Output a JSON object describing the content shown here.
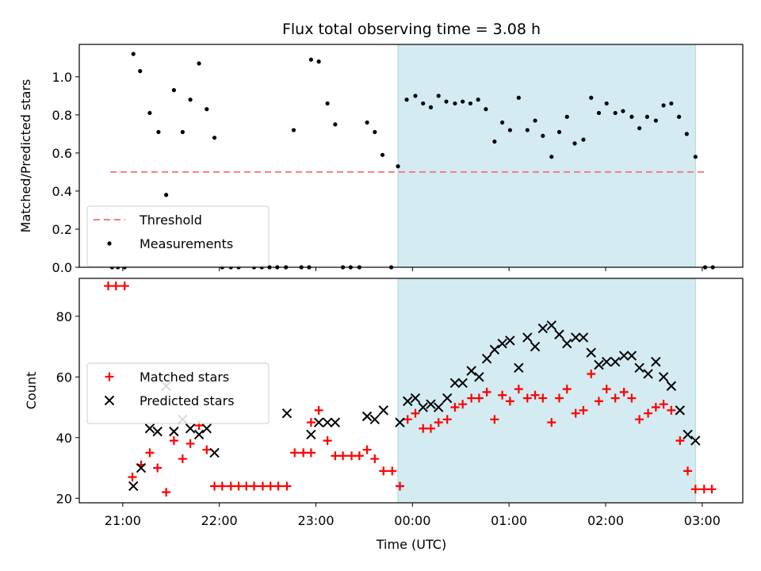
{
  "chart_data": {
    "title": "Flux total observing time = 3.08 h",
    "xlabel": "Time (UTC)",
    "x_ticks": [
      {
        "t": 21.0,
        "label": "21:00"
      },
      {
        "t": 22.0,
        "label": "22:00"
      },
      {
        "t": 23.0,
        "label": "23:00"
      },
      {
        "t": 24.0,
        "label": "00:00"
      },
      {
        "t": 25.0,
        "label": "01:00"
      },
      {
        "t": 26.0,
        "label": "02:00"
      },
      {
        "t": 27.0,
        "label": "03:00"
      }
    ],
    "highlight_span": {
      "start": 23.85,
      "end": 26.93,
      "color": "#d4ebf1"
    },
    "panels": [
      {
        "type": "scatter",
        "ylabel": "Matched/Predicted stars",
        "ylim": [
          0,
          1.17
        ],
        "y_ticks": [
          0.0,
          0.2,
          0.4,
          0.6,
          0.8,
          1.0
        ],
        "y_tick_labels": [
          "0.0",
          "0.2",
          "0.4",
          "0.6",
          "0.8",
          "1.0"
        ],
        "threshold": {
          "name": "Threshold",
          "value": 0.5,
          "x_range": [
            20.87,
            27.03
          ],
          "color": "#f08080"
        },
        "series": [
          {
            "name": "Measurements",
            "marker": "dot",
            "color": "#000000",
            "points": [
              [
                20.89,
                0.0
              ],
              [
                20.95,
                0.0
              ],
              [
                21.02,
                0.0
              ],
              [
                21.11,
                1.12
              ],
              [
                21.18,
                1.03
              ],
              [
                21.28,
                0.81
              ],
              [
                21.37,
                0.71
              ],
              [
                21.45,
                0.38
              ],
              [
                21.53,
                0.93
              ],
              [
                21.62,
                0.71
              ],
              [
                21.7,
                0.88
              ],
              [
                21.79,
                1.07
              ],
              [
                21.87,
                0.83
              ],
              [
                21.95,
                0.68
              ],
              [
                22.03,
                0.0
              ],
              [
                22.12,
                0.0
              ],
              [
                22.2,
                0.0
              ],
              [
                22.36,
                0.0
              ],
              [
                22.44,
                0.0
              ],
              [
                22.52,
                0.0
              ],
              [
                22.6,
                0.0
              ],
              [
                22.69,
                0.0
              ],
              [
                22.77,
                0.72
              ],
              [
                22.85,
                0.0
              ],
              [
                22.93,
                0.0
              ],
              [
                22.95,
                1.09
              ],
              [
                23.03,
                1.08
              ],
              [
                23.12,
                0.86
              ],
              [
                23.2,
                0.75
              ],
              [
                23.28,
                0.0
              ],
              [
                23.36,
                0.0
              ],
              [
                23.45,
                0.0
              ],
              [
                23.53,
                0.76
              ],
              [
                23.61,
                0.71
              ],
              [
                23.69,
                0.59
              ],
              [
                23.78,
                0.0
              ],
              [
                23.85,
                0.53
              ],
              [
                23.94,
                0.88
              ],
              [
                24.03,
                0.9
              ],
              [
                24.11,
                0.86
              ],
              [
                24.19,
                0.84
              ],
              [
                24.27,
                0.9
              ],
              [
                24.35,
                0.87
              ],
              [
                24.44,
                0.86
              ],
              [
                24.52,
                0.87
              ],
              [
                24.6,
                0.86
              ],
              [
                24.68,
                0.88
              ],
              [
                24.76,
                0.83
              ],
              [
                24.85,
                0.66
              ],
              [
                24.93,
                0.76
              ],
              [
                25.01,
                0.72
              ],
              [
                25.1,
                0.89
              ],
              [
                25.19,
                0.72
              ],
              [
                25.27,
                0.77
              ],
              [
                25.35,
                0.69
              ],
              [
                25.44,
                0.58
              ],
              [
                25.52,
                0.71
              ],
              [
                25.6,
                0.79
              ],
              [
                25.68,
                0.65
              ],
              [
                25.77,
                0.67
              ],
              [
                25.85,
                0.89
              ],
              [
                25.93,
                0.81
              ],
              [
                26.01,
                0.86
              ],
              [
                26.1,
                0.81
              ],
              [
                26.18,
                0.82
              ],
              [
                26.27,
                0.79
              ],
              [
                26.35,
                0.73
              ],
              [
                26.43,
                0.79
              ],
              [
                26.52,
                0.77
              ],
              [
                26.6,
                0.85
              ],
              [
                26.68,
                0.86
              ],
              [
                26.76,
                0.79
              ],
              [
                26.84,
                0.7
              ],
              [
                26.93,
                0.58
              ],
              [
                27.03,
                0.0
              ],
              [
                27.11,
                0.0
              ]
            ]
          }
        ],
        "legend_position": "lower-left"
      },
      {
        "type": "scatter",
        "ylabel": "Count",
        "ylim": [
          18.5,
          92.5
        ],
        "y_ticks": [
          20,
          40,
          60,
          80
        ],
        "y_tick_labels": [
          "20",
          "40",
          "60",
          "80"
        ],
        "series": [
          {
            "name": "Matched stars",
            "marker": "plus",
            "color": "#ff0000",
            "points": [
              [
                20.85,
                90
              ],
              [
                20.93,
                90
              ],
              [
                21.02,
                90
              ],
              [
                21.1,
                27
              ],
              [
                21.19,
                31
              ],
              [
                21.28,
                35
              ],
              [
                21.36,
                30
              ],
              [
                21.45,
                22
              ],
              [
                21.53,
                39
              ],
              [
                21.62,
                33
              ],
              [
                21.7,
                38
              ],
              [
                21.79,
                44
              ],
              [
                21.87,
                36
              ],
              [
                21.95,
                24
              ],
              [
                22.03,
                24
              ],
              [
                22.12,
                24
              ],
              [
                22.2,
                24
              ],
              [
                22.28,
                24
              ],
              [
                22.36,
                24
              ],
              [
                22.45,
                24
              ],
              [
                22.53,
                24
              ],
              [
                22.61,
                24
              ],
              [
                22.7,
                24
              ],
              [
                22.78,
                35
              ],
              [
                22.87,
                35
              ],
              [
                22.95,
                35
              ],
              [
                22.95,
                45
              ],
              [
                23.03,
                49
              ],
              [
                23.12,
                39
              ],
              [
                23.2,
                34
              ],
              [
                23.28,
                34
              ],
              [
                23.37,
                34
              ],
              [
                23.45,
                34
              ],
              [
                23.53,
                36
              ],
              [
                23.61,
                33
              ],
              [
                23.7,
                29
              ],
              [
                23.79,
                29
              ],
              [
                23.87,
                24
              ],
              [
                23.95,
                46
              ],
              [
                24.03,
                48
              ],
              [
                24.11,
                43
              ],
              [
                24.19,
                43
              ],
              [
                24.27,
                45
              ],
              [
                24.36,
                46
              ],
              [
                24.44,
                50
              ],
              [
                24.52,
                51
              ],
              [
                24.61,
                53
              ],
              [
                24.69,
                53
              ],
              [
                24.77,
                55
              ],
              [
                24.85,
                46
              ],
              [
                24.93,
                54
              ],
              [
                25.01,
                52
              ],
              [
                25.1,
                56
              ],
              [
                25.19,
                53
              ],
              [
                25.27,
                54
              ],
              [
                25.35,
                53
              ],
              [
                25.44,
                45
              ],
              [
                25.52,
                53
              ],
              [
                25.6,
                56
              ],
              [
                25.69,
                48
              ],
              [
                25.77,
                49
              ],
              [
                25.85,
                61
              ],
              [
                25.93,
                52
              ],
              [
                26.01,
                56
              ],
              [
                26.1,
                53
              ],
              [
                26.19,
                55
              ],
              [
                26.27,
                53
              ],
              [
                26.35,
                46
              ],
              [
                26.44,
                48
              ],
              [
                26.52,
                50
              ],
              [
                26.6,
                51
              ],
              [
                26.68,
                49
              ],
              [
                26.77,
                39
              ],
              [
                26.85,
                29
              ],
              [
                26.93,
                23
              ],
              [
                27.02,
                23
              ],
              [
                27.1,
                23
              ]
            ]
          },
          {
            "name": "Predicted stars",
            "marker": "x",
            "color": "#000000",
            "points": [
              [
                21.11,
                24
              ],
              [
                21.19,
                30
              ],
              [
                21.28,
                43
              ],
              [
                21.36,
                42
              ],
              [
                21.45,
                57
              ],
              [
                21.53,
                42
              ],
              [
                21.62,
                46
              ],
              [
                21.7,
                43
              ],
              [
                21.79,
                41
              ],
              [
                21.87,
                43
              ],
              [
                21.95,
                35
              ],
              [
                22.7,
                48
              ],
              [
                22.95,
                41
              ],
              [
                23.03,
                45
              ],
              [
                23.12,
                45
              ],
              [
                23.2,
                45
              ],
              [
                23.53,
                47
              ],
              [
                23.61,
                46
              ],
              [
                23.7,
                49
              ],
              [
                23.87,
                45
              ],
              [
                23.95,
                52
              ],
              [
                24.03,
                53
              ],
              [
                24.11,
                50
              ],
              [
                24.19,
                51
              ],
              [
                24.27,
                50
              ],
              [
                24.36,
                53
              ],
              [
                24.44,
                58
              ],
              [
                24.52,
                58
              ],
              [
                24.61,
                62
              ],
              [
                24.69,
                60
              ],
              [
                24.77,
                66
              ],
              [
                24.85,
                69
              ],
              [
                24.93,
                71
              ],
              [
                25.01,
                72
              ],
              [
                25.1,
                63
              ],
              [
                25.19,
                73
              ],
              [
                25.27,
                70
              ],
              [
                25.35,
                76
              ],
              [
                25.44,
                77
              ],
              [
                25.52,
                74
              ],
              [
                25.6,
                71
              ],
              [
                25.69,
                73
              ],
              [
                25.77,
                73
              ],
              [
                25.85,
                68
              ],
              [
                25.93,
                64
              ],
              [
                26.01,
                65
              ],
              [
                26.1,
                65
              ],
              [
                26.19,
                67
              ],
              [
                26.27,
                67
              ],
              [
                26.35,
                63
              ],
              [
                26.44,
                61
              ],
              [
                26.52,
                65
              ],
              [
                26.6,
                60
              ],
              [
                26.68,
                57
              ],
              [
                26.77,
                49
              ],
              [
                26.85,
                41
              ],
              [
                26.93,
                39
              ]
            ]
          }
        ],
        "legend_position": "center-left"
      }
    ]
  }
}
